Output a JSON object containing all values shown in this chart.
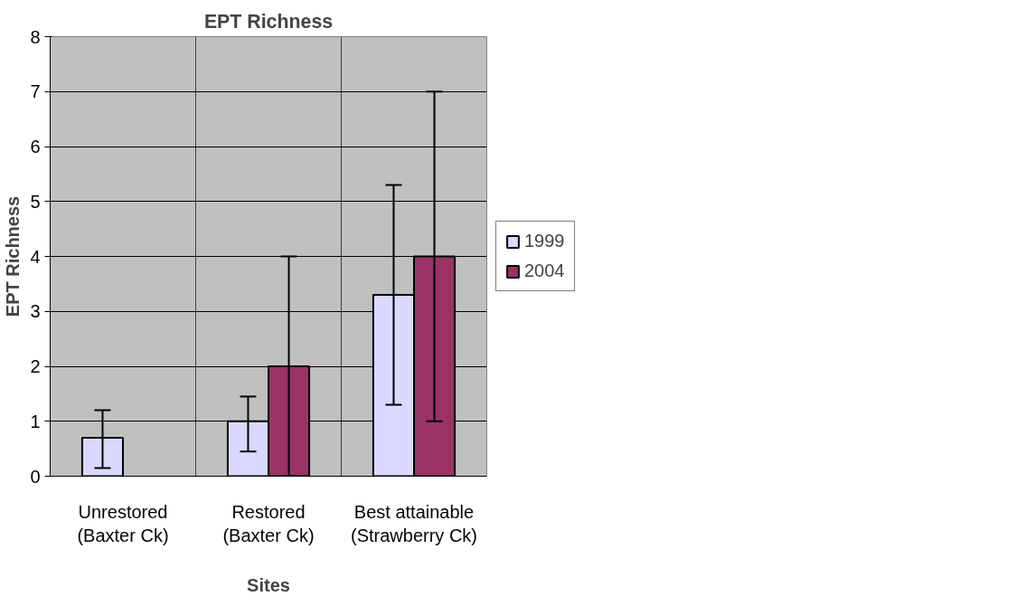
{
  "chart_data": {
    "type": "bar",
    "title": "EPT Richness",
    "xlabel": "Sites",
    "ylabel": "EPT Richness",
    "categories": [
      "Unrestored\n(Baxter Ck)",
      "Restored\n(Baxter Ck)",
      "Best attainable\n(Strawberry Ck)"
    ],
    "series": [
      {
        "name": "1999",
        "color": "#d9d9ff",
        "values": [
          0.7,
          1.0,
          3.3
        ],
        "errors": [
          [
            0.15,
            1.2
          ],
          [
            0.45,
            1.45
          ],
          [
            1.3,
            5.3
          ]
        ]
      },
      {
        "name": "2004",
        "color": "#993366",
        "values": [
          null,
          2.0,
          4.0
        ],
        "errors": [
          null,
          [
            0,
            4
          ],
          [
            1,
            7
          ]
        ]
      }
    ],
    "ylim": [
      0,
      8
    ],
    "yticks": [
      0,
      1,
      2,
      3,
      4,
      5,
      6,
      7,
      8
    ],
    "grid": true,
    "legend": "right"
  }
}
